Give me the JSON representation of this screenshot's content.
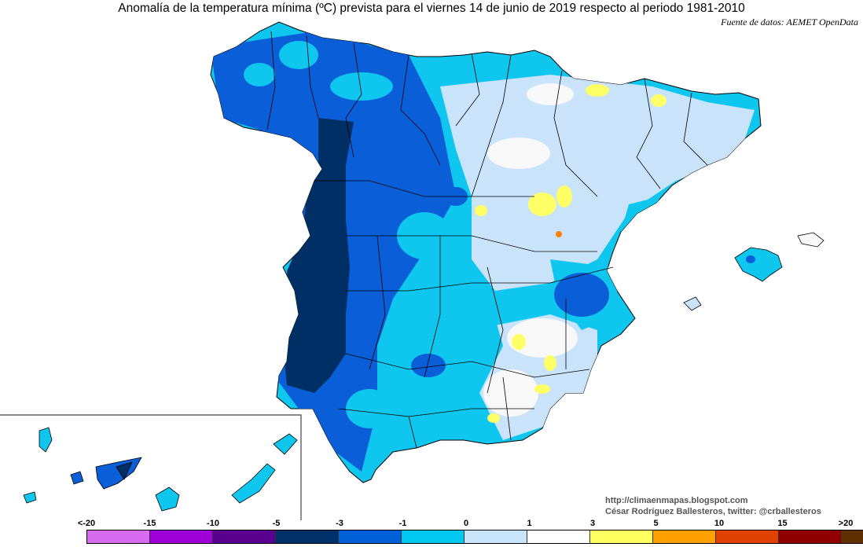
{
  "title": "Anomalía de la temperatura mínima (ºC) prevista para el viernes 14 de junio de 2019 respecto al periodo 1981-2010",
  "source": "Fuente de datos: AEMET OpenData",
  "credits": {
    "line1": "http://climaenmapas.blogspot.com",
    "line2": "César Rodríguez Ballesteros, twitter: @crballesteros"
  },
  "legend": {
    "labels": [
      "<-20",
      "-15",
      "-10",
      "-5",
      "-3",
      "-1",
      "0",
      "1",
      "3",
      "5",
      "10",
      "15",
      ">20"
    ],
    "colors": [
      "#d86cf0",
      "#a000d8",
      "#5a0090",
      "#003068",
      "#0060d8",
      "#00c8f0",
      "#c8e4fa",
      "#ffffff",
      "#ffff60",
      "#ffa000",
      "#e04000",
      "#900000",
      "#603000"
    ]
  },
  "map_colors": {
    "sea": "#ffffff",
    "border": "#000000",
    "anom_dark": "#002f66",
    "anom_blue": "#0a5fd8",
    "anom_cyan": "#0fc6ef",
    "anom_light": "#c9e3fa",
    "anom_zero": "#f8f8f8",
    "anom_warm": "#ffff66",
    "anom_hot": "#ff7f00"
  }
}
